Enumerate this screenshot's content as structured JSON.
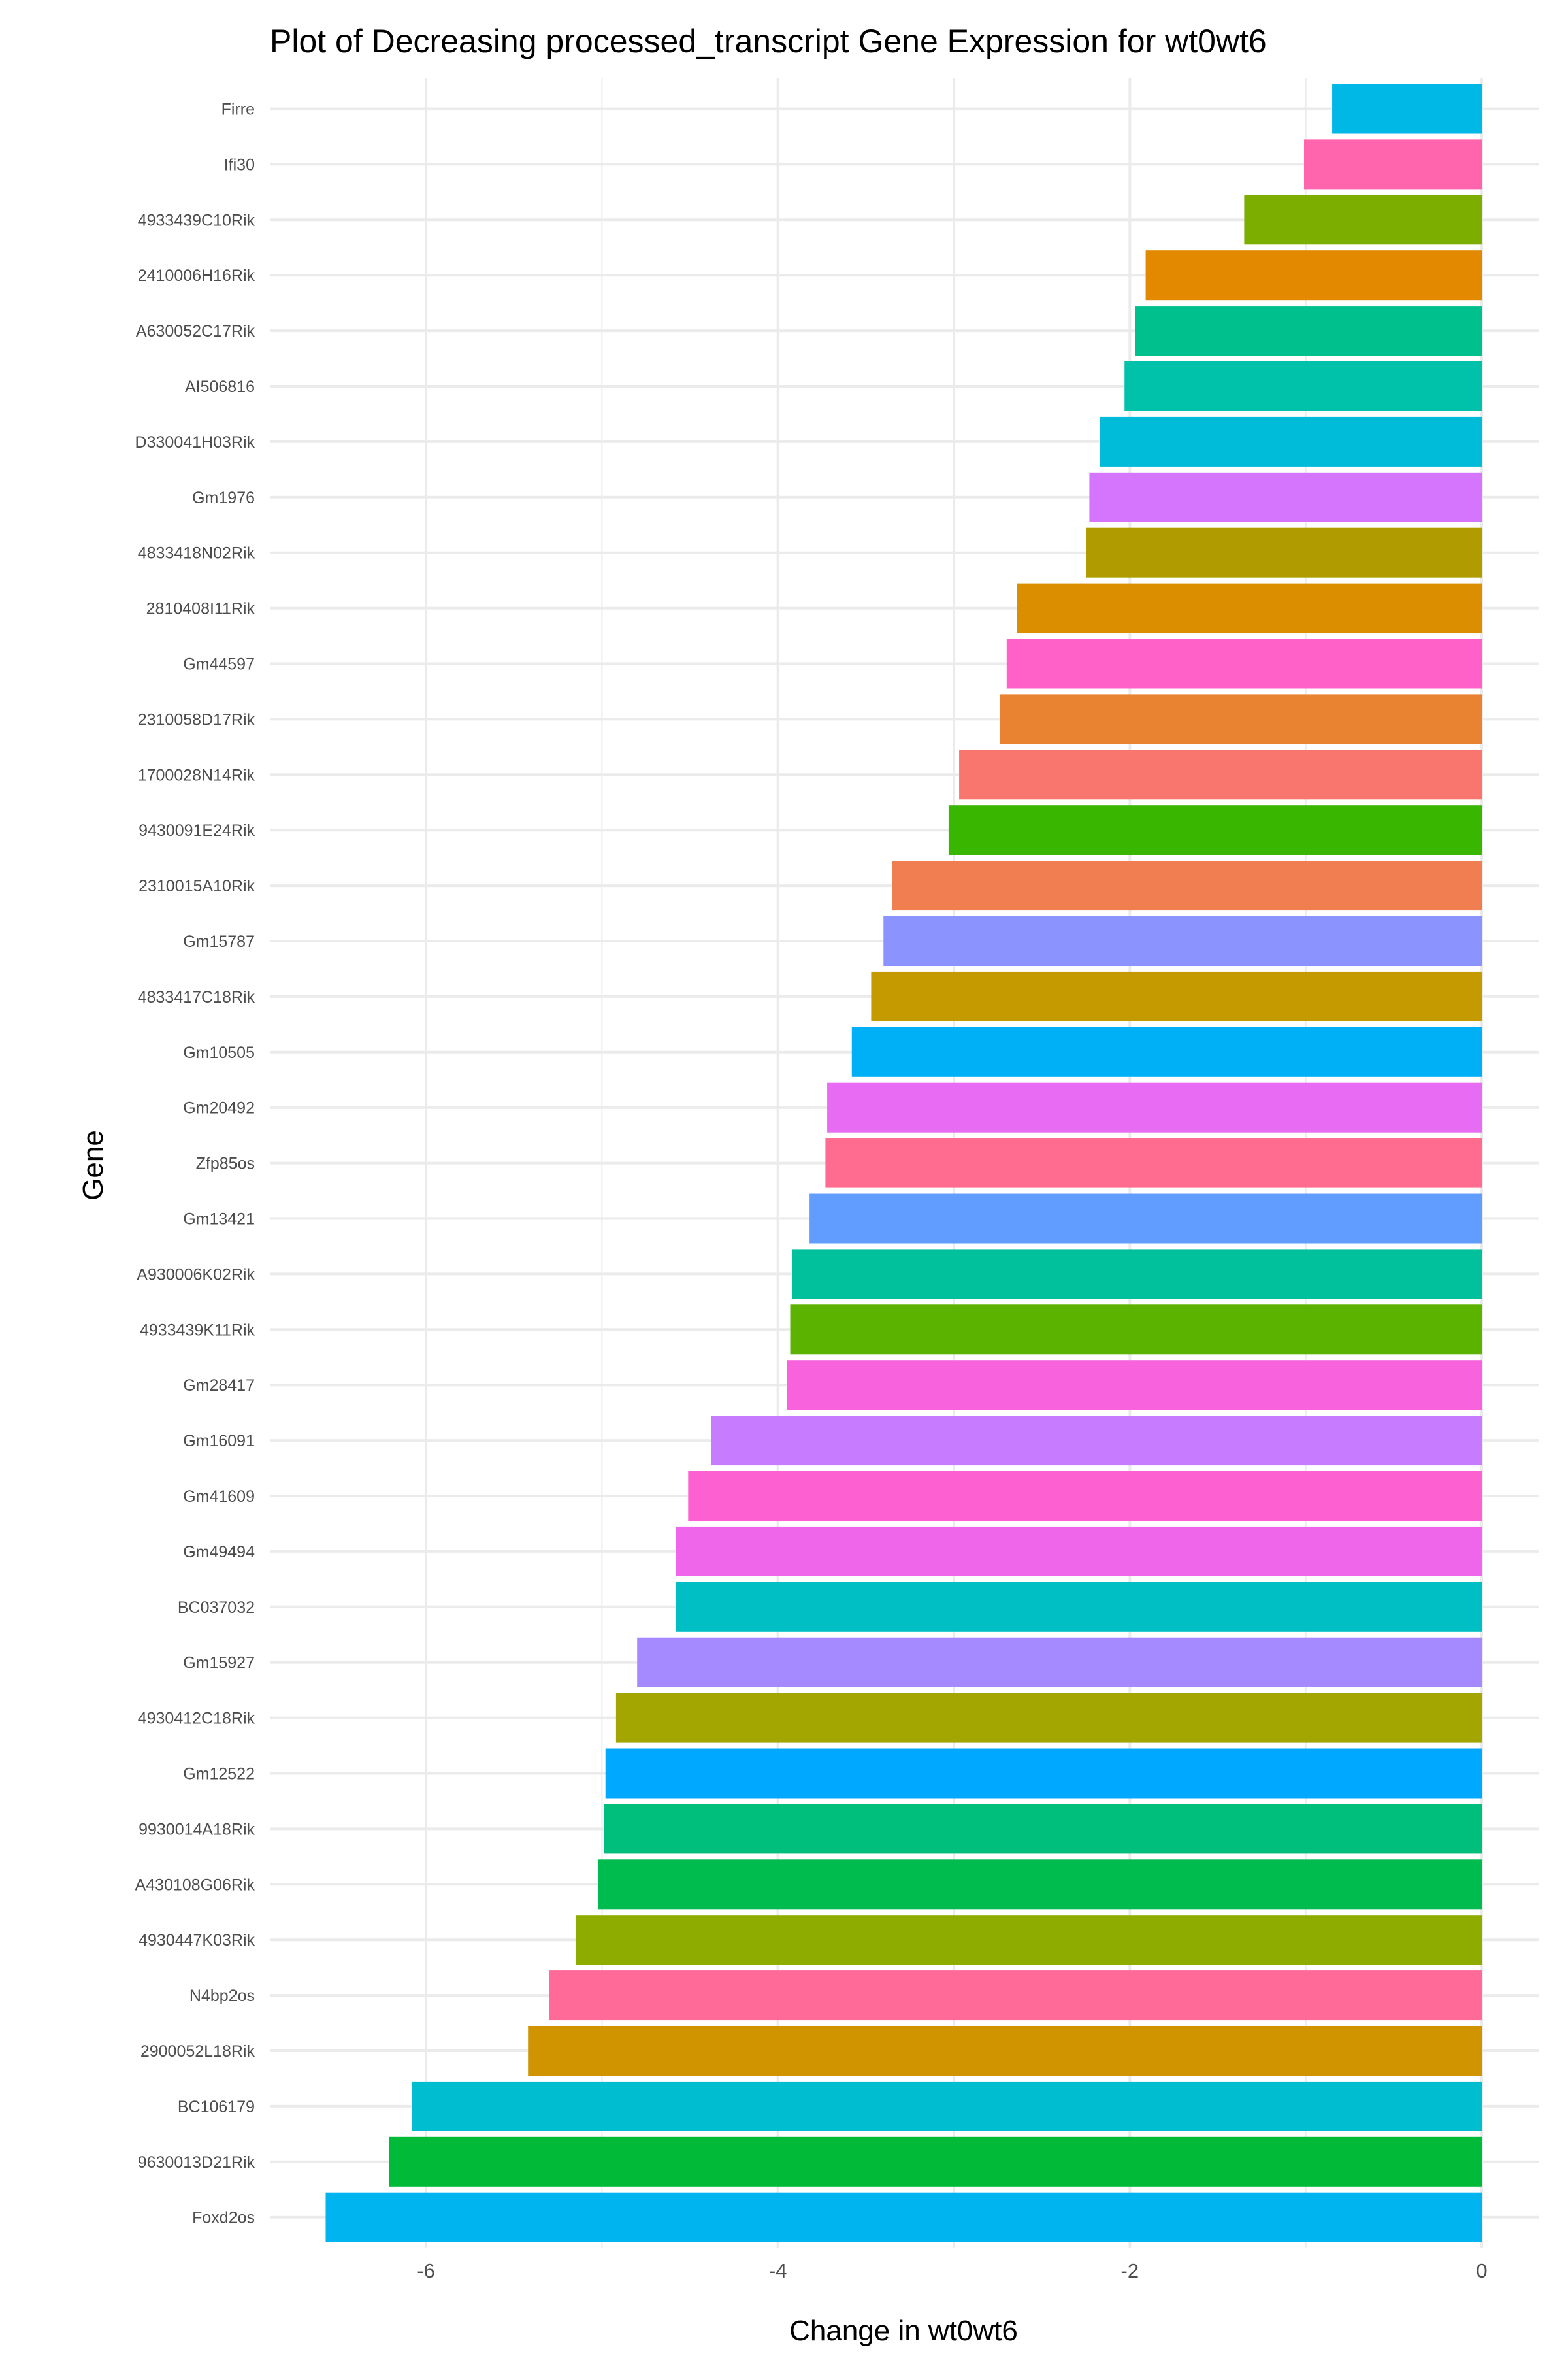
{
  "chart_data": {
    "type": "bar",
    "orientation": "horizontal",
    "title": "Plot of Decreasing processed_transcript Gene Expression for wt0wt6",
    "xlabel": "Change in wt0wt6",
    "ylabel": "Gene",
    "xlim": [
      -6.9,
      0.3
    ],
    "xticks": [
      -6,
      -4,
      -2,
      0
    ],
    "xtick_labels": [
      "-6",
      "-4",
      "-2",
      "0"
    ],
    "grid": true,
    "legend": "none",
    "categories": [
      "Firre",
      "Ifi30",
      "4933439C10Rik",
      "2410006H16Rik",
      "A630052C17Rik",
      "AI506816",
      "D330041H03Rik",
      "Gm1976",
      "4833418N02Rik",
      "2810408I11Rik",
      "Gm44597",
      "2310058D17Rik",
      "1700028N14Rik",
      "9430091E24Rik",
      "2310015A10Rik",
      "Gm15787",
      "4833417C18Rik",
      "Gm10505",
      "Gm20492",
      "Zfp85os",
      "Gm13421",
      "A930006K02Rik",
      "4933439K11Rik",
      "Gm28417",
      "Gm16091",
      "Gm41609",
      "Gm49494",
      "BC037032",
      "Gm15927",
      "4930412C18Rik",
      "Gm12522",
      "9930014A18Rik",
      "A430108G06Rik",
      "4930447K03Rik",
      "N4bp2os",
      "2900052L18Rik",
      "BC106179",
      "9630013D21Rik",
      "Foxd2os"
    ],
    "values": [
      -0.85,
      -1.01,
      -1.35,
      -1.91,
      -1.97,
      -2.03,
      -2.17,
      -2.23,
      -2.25,
      -2.64,
      -2.7,
      -2.74,
      -2.97,
      -3.03,
      -3.35,
      -3.4,
      -3.47,
      -3.58,
      -3.72,
      -3.73,
      -3.82,
      -3.92,
      -3.93,
      -3.95,
      -4.38,
      -4.51,
      -4.58,
      -4.58,
      -4.8,
      -4.92,
      -4.98,
      -4.99,
      -5.02,
      -5.15,
      -5.3,
      -5.42,
      -6.08,
      -6.21,
      -6.57
    ],
    "colors": [
      "#00B8E5",
      "#FF65AC",
      "#7CAE00",
      "#E38900",
      "#00C08D",
      "#00C1AA",
      "#00BCD8",
      "#D575FE",
      "#B09C00",
      "#DB8E00",
      "#FF61C9",
      "#EA8331",
      "#F8766D",
      "#39B600",
      "#F17E51",
      "#8B93FF",
      "#C59900",
      "#00B0F6",
      "#E76BF3",
      "#FF6C90",
      "#619CFF",
      "#00C19C",
      "#5BB300",
      "#F962DD",
      "#C77CFF",
      "#FD61D1",
      "#F066EA",
      "#00BFC4",
      "#A58AFF",
      "#A3A500",
      "#00A9FF",
      "#00BF7D",
      "#00BB4E",
      "#8EAB00",
      "#FF6A98",
      "#CF9400",
      "#00BDD0",
      "#00BA38",
      "#00B4EF"
    ]
  }
}
